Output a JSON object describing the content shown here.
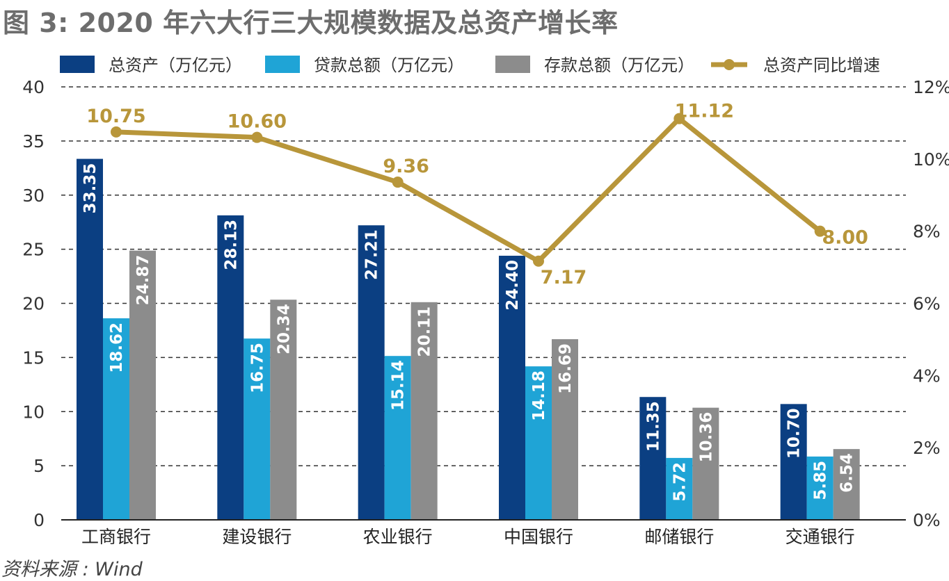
{
  "title": "图 3: 2020 年六大行三大规模数据及总资产增长率",
  "source": "资料来源 : Wind",
  "chart_data": {
    "type": "bar",
    "categories": [
      "工商银行",
      "建设银行",
      "农业银行",
      "中国银行",
      "邮储银行",
      "交通银行"
    ],
    "series": [
      {
        "name": "总资产（万亿元）",
        "type": "bar",
        "axis": "left",
        "color": "#0b3f82",
        "values": [
          33.35,
          28.13,
          27.21,
          24.4,
          11.35,
          10.7
        ],
        "labels": [
          "33.35",
          "28.13",
          "27.21",
          "24.40",
          "11.35",
          "10.70"
        ]
      },
      {
        "name": "贷款总额（万亿元）",
        "type": "bar",
        "axis": "left",
        "color": "#1fa4d6",
        "values": [
          18.62,
          16.75,
          15.14,
          14.18,
          5.72,
          5.85
        ],
        "labels": [
          "18.62",
          "16.75",
          "15.14",
          "14.18",
          "5.72",
          "5.85"
        ]
      },
      {
        "name": "存款总额（万亿元）",
        "type": "bar",
        "axis": "left",
        "color": "#8c8c8c",
        "values": [
          24.87,
          20.34,
          20.11,
          16.69,
          10.36,
          6.54
        ],
        "labels": [
          "24.87",
          "20.34",
          "20.11",
          "16.69",
          "10.36",
          "6.54"
        ]
      },
      {
        "name": "总资产同比增速",
        "type": "line",
        "axis": "right",
        "color": "#b8963a",
        "values": [
          10.75,
          10.6,
          9.36,
          7.17,
          11.12,
          8.0
        ],
        "labels": [
          "10.75",
          "10.60",
          "9.36",
          "7.17",
          "11.12",
          "8.00"
        ]
      }
    ],
    "ylim_left": [
      0,
      40
    ],
    "yticks_left": [
      "0",
      "5",
      "10",
      "15",
      "20",
      "25",
      "30",
      "35",
      "40"
    ],
    "ylim_right": [
      0,
      12
    ],
    "yticks_right": [
      "0%",
      "2%",
      "4%",
      "6%",
      "8%",
      "10%",
      "12%"
    ],
    "grid": true,
    "legend_position": "top"
  }
}
